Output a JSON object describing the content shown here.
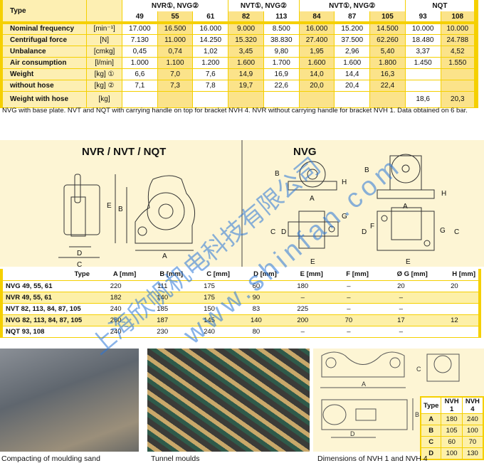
{
  "spec_table": {
    "type_label": "Type",
    "groups": [
      "NVR①, NVG②",
      "NVT①, NVG②",
      "NVT①, NVG②",
      "NQT"
    ],
    "models": [
      "49",
      "55",
      "61",
      "82",
      "113",
      "84",
      "87",
      "105",
      "93",
      "108"
    ],
    "rows": [
      {
        "label": "Nominal frequency",
        "unit": "[min⁻¹]",
        "values": [
          "17.000",
          "16.500",
          "16.000",
          "9.000",
          "8.500",
          "16.000",
          "15.200",
          "14.500",
          "10.000",
          "10.000"
        ]
      },
      {
        "label": "Centrifugal force",
        "unit": "[N]",
        "values": [
          "7.130",
          "11.000",
          "14.250",
          "15.320",
          "38.830",
          "27.400",
          "37.500",
          "62.260",
          "18.480",
          "24.788"
        ]
      },
      {
        "label": "Unbalance",
        "unit": "[cmkg]",
        "values": [
          "0,45",
          "0,74",
          "1,02",
          "3,45",
          "9,80",
          "1,95",
          "2,96",
          "5,40",
          "3,37",
          "4,52"
        ]
      },
      {
        "label": "Air consumption",
        "unit": "[l/min]",
        "values": [
          "1.000",
          "1.100",
          "1.200",
          "1.600",
          "1.700",
          "1.600",
          "1.600",
          "1.800",
          "1.450",
          "1.550"
        ]
      },
      {
        "label": "Weight",
        "unit": "[kg] ①",
        "values": [
          "6,6",
          "7,0",
          "7,6",
          "14,9",
          "16,9",
          "14,0",
          "14,4",
          "16,3",
          "",
          ""
        ]
      },
      {
        "label": "without hose",
        "unit": "[kg] ②",
        "values": [
          "7,1",
          "7,3",
          "7,8",
          "19,7",
          "22,6",
          "20,0",
          "20,4",
          "22,4",
          "",
          ""
        ]
      },
      {
        "label": "Weight with hose",
        "unit": "[kg]",
        "values": [
          "",
          "",
          "",
          "",
          "",
          "",
          "",
          "",
          "18,6",
          "20,3"
        ]
      }
    ]
  },
  "caption": "NVG with base plate. NVT and NQT with carrying handle on top for bracket NVH 4. NVR without carrying handle for bracket NVH 1. Data obtained on 6 bar.",
  "drawings": {
    "left_title": "NVR / NVT / NQT",
    "right_title": "NVG",
    "labels": [
      "A",
      "B",
      "C",
      "D",
      "E",
      "F",
      "G",
      "H"
    ]
  },
  "dim_table": {
    "headers": [
      "Type",
      "A [mm]",
      "B [mm]",
      "C [mm]",
      "D [mm]",
      "E [mm]",
      "F [mm]",
      "Ø G [mm]",
      "H [mm]"
    ],
    "rows": [
      [
        "NVG 49, 55, 61",
        "220",
        "111",
        "175",
        "60",
        "180",
        "–",
        "20",
        "20"
      ],
      [
        "NVR 49, 55, 61",
        "182",
        "140",
        "175",
        "90",
        "–",
        "–",
        "–",
        ""
      ],
      [
        "NVT 82, 113, 84, 87, 105",
        "240",
        "185",
        "150",
        "83",
        "225",
        "–",
        "–",
        ""
      ],
      [
        "NVG 82, 113, 84, 87, 105",
        "260",
        "187",
        "145",
        "140",
        "200",
        "70",
        "17",
        "12"
      ],
      [
        "NQT 93, 108",
        "240",
        "230",
        "240",
        "80",
        "–",
        "–",
        "–",
        ""
      ]
    ]
  },
  "photos": [
    {
      "caption": "Compacting of moulding sand"
    },
    {
      "caption": "Tunnel moulds"
    }
  ],
  "nvh": {
    "caption": "Dimensions of NVH 1 and NVH 4",
    "headers": [
      "Type",
      "NVH 1",
      "NVH 4"
    ],
    "rows": [
      [
        "A",
        "180",
        "240"
      ],
      [
        "B",
        "105",
        "100"
      ],
      [
        "C",
        "60",
        "70"
      ],
      [
        "D",
        "100",
        "130"
      ]
    ]
  },
  "watermark": {
    "company": "上海欣帆机电科技有限公司",
    "url": "www.shinfan.com"
  },
  "colors": {
    "accent": "#f5d000",
    "shade": "#fbe38a",
    "panel": "#fdf5d4",
    "watermark": "#2a76d8"
  }
}
